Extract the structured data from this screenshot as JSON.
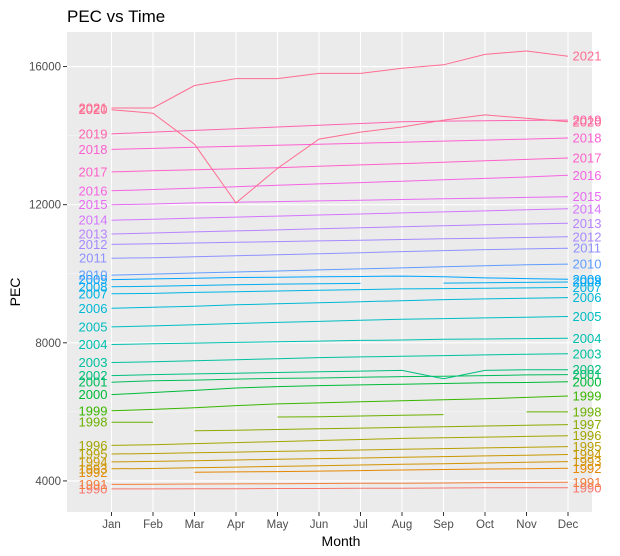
{
  "chart_data": {
    "type": "line",
    "title": "PEC vs Time",
    "xlabel": "Month",
    "ylabel": "PEC",
    "x": [
      "Jan",
      "Feb",
      "Mar",
      "Apr",
      "May",
      "Jun",
      "Jul",
      "Aug",
      "Sep",
      "Oct",
      "Nov",
      "Dec"
    ],
    "y_ticks": [
      4000,
      8000,
      12000,
      16000
    ],
    "ylim": [
      3100,
      17000
    ],
    "grid": true,
    "legend": "direct labels at both ends of each line",
    "palette": [
      "#F8766D",
      "#F17E3A",
      "#E58700",
      "#D39200",
      "#C99800",
      "#B79F00",
      "#A3A500",
      "#8BAB00",
      "#6BB100",
      "#39B600",
      "#00BA38",
      "#00BC59",
      "#00BF7D",
      "#00C19F",
      "#00C0AF",
      "#00BDC2",
      "#00B8D4",
      "#00B4E3",
      "#00ADEF",
      "#00A5FF",
      "#619CFF",
      "#8F91FF",
      "#A58AFF",
      "#B983FF",
      "#D575FE",
      "#E76BF3",
      "#F564E3",
      "#FF61C9",
      "#FD61D1",
      "#FF64B0",
      "#FF6C91",
      "#FF6C91"
    ],
    "series": [
      {
        "name": "1990",
        "values": [
          3770,
          3770,
          3775,
          3775,
          3780,
          3780,
          3785,
          3790,
          3795,
          3800,
          3800,
          3800
        ]
      },
      {
        "name": "1991",
        "values": [
          3900,
          3905,
          3910,
          3915,
          3920,
          3925,
          3930,
          3935,
          3940,
          3950,
          3955,
          3960
        ]
      },
      {
        "name": "1992",
        "values": [
          null,
          null,
          4250,
          4260,
          4270,
          4285,
          4300,
          4315,
          4330,
          4345,
          4355,
          4365
        ]
      },
      {
        "name": "1993",
        "values": [
          4350,
          4360,
          4380,
          4400,
          4420,
          4440,
          4460,
          4480,
          4500,
          4520,
          4540,
          4560
        ]
      },
      {
        "name": "1994",
        "values": [
          4550,
          4565,
          4585,
          4605,
          4625,
          4645,
          4665,
          4685,
          4705,
          4725,
          4745,
          4765
        ]
      },
      {
        "name": "1995",
        "values": [
          4780,
          4795,
          4815,
          4835,
          4855,
          4875,
          4895,
          4915,
          4935,
          4955,
          4975,
          4995
        ]
      },
      {
        "name": "1996",
        "values": [
          5030,
          5050,
          5080,
          5110,
          5140,
          5170,
          5200,
          5230,
          5250,
          5270,
          5290,
          5310
        ]
      },
      {
        "name": "1997",
        "values": [
          null,
          null,
          5450,
          5470,
          5490,
          5510,
          5530,
          5550,
          5570,
          5590,
          5610,
          5630
        ]
      },
      {
        "name": "1998",
        "values": [
          5700,
          5700,
          null,
          null,
          5850,
          5860,
          5880,
          5900,
          5920,
          null,
          6000,
          6000
        ]
      },
      {
        "name": "1999",
        "values": [
          6030,
          6070,
          6120,
          6180,
          6230,
          6260,
          6290,
          6320,
          6350,
          6380,
          6420,
          6460
        ]
      },
      {
        "name": "2000",
        "values": [
          6500,
          6560,
          6620,
          6690,
          6730,
          6760,
          6780,
          6800,
          6820,
          6840,
          6850,
          6870
        ]
      },
      {
        "name": "2001",
        "values": [
          6860,
          6900,
          6920,
          6950,
          6970,
          6980,
          7000,
          7020,
          7030,
          7050,
          7070,
          7080
        ]
      },
      {
        "name": "2002",
        "values": [
          7050,
          7080,
          7100,
          7120,
          7140,
          7160,
          7180,
          7200,
          6960,
          7200,
          7220,
          7220
        ]
      },
      {
        "name": "2003",
        "values": [
          7430,
          7450,
          7480,
          7510,
          7540,
          7570,
          7590,
          7610,
          7630,
          7650,
          7670,
          7680
        ]
      },
      {
        "name": "2004",
        "values": [
          7950,
          7970,
          7990,
          8010,
          8030,
          8050,
          8070,
          8080,
          8100,
          8110,
          8120,
          8130
        ]
      },
      {
        "name": "2005",
        "values": [
          8460,
          8490,
          8520,
          8560,
          8590,
          8620,
          8650,
          8680,
          8700,
          8720,
          8740,
          8760
        ]
      },
      {
        "name": "2006",
        "values": [
          9000,
          9030,
          9060,
          9100,
          9130,
          9160,
          9190,
          9220,
          9250,
          9270,
          9290,
          9310
        ]
      },
      {
        "name": "2007",
        "values": [
          9420,
          9430,
          9460,
          9480,
          9500,
          9520,
          9540,
          9560,
          9570,
          9580,
          9590,
          9600
        ]
      },
      {
        "name": "2008",
        "values": [
          9620,
          9640,
          9660,
          9680,
          9700,
          9710,
          9720,
          null,
          9730,
          9740,
          9750,
          9760
        ]
      },
      {
        "name": "2009",
        "values": [
          9830,
          9850,
          9870,
          9890,
          9900,
          9910,
          9920,
          9930,
          9910,
          9880,
          9860,
          9840
        ]
      },
      {
        "name": "2010",
        "values": [
          9960,
          9990,
          10020,
          10050,
          10080,
          10110,
          10140,
          10170,
          10200,
          10230,
          10260,
          10280
        ]
      },
      {
        "name": "2011",
        "values": [
          10450,
          10460,
          10490,
          10520,
          10550,
          10580,
          10610,
          10640,
          10670,
          10700,
          10720,
          10740
        ]
      },
      {
        "name": "2012",
        "values": [
          10850,
          10870,
          10890,
          10910,
          10930,
          10950,
          10970,
          10990,
          11010,
          11030,
          11050,
          11070
        ]
      },
      {
        "name": "2013",
        "values": [
          11150,
          11180,
          11210,
          11240,
          11270,
          11300,
          11330,
          11360,
          11390,
          11420,
          11440,
          11460
        ]
      },
      {
        "name": "2014",
        "values": [
          11550,
          11580,
          11610,
          11640,
          11670,
          11700,
          11730,
          11760,
          11790,
          11820,
          11850,
          11880
        ]
      },
      {
        "name": "2015",
        "values": [
          12000,
          12020,
          12050,
          12070,
          12090,
          12110,
          12130,
          12150,
          12170,
          12190,
          12210,
          12230
        ]
      },
      {
        "name": "2016",
        "values": [
          12400,
          12440,
          12480,
          12520,
          12560,
          12600,
          12640,
          12680,
          12720,
          12760,
          12800,
          12850
        ]
      },
      {
        "name": "2017",
        "values": [
          12950,
          12980,
          13010,
          13040,
          13070,
          13110,
          13150,
          13190,
          13230,
          13270,
          13310,
          13350
        ]
      },
      {
        "name": "2018",
        "values": [
          13600,
          13630,
          13660,
          13690,
          13720,
          13750,
          13780,
          13810,
          13840,
          13870,
          13900,
          13930
        ]
      },
      {
        "name": "2019",
        "values": [
          14050,
          14100,
          14150,
          14200,
          14250,
          14300,
          14350,
          14400,
          14420,
          14430,
          14440,
          14450
        ]
      },
      {
        "name": "2020",
        "values": [
          14750,
          14650,
          13750,
          12050,
          13050,
          13900,
          14100,
          14250,
          14450,
          14600,
          14500,
          14400
        ]
      },
      {
        "name": "2021",
        "values": [
          14800,
          14800,
          15450,
          15650,
          15650,
          15800,
          15800,
          15950,
          16050,
          16350,
          16450,
          16300
        ]
      }
    ],
    "left_labels": [
      "1990",
      "1991",
      "1992",
      "1993",
      "1994",
      "1995",
      "1996",
      "1998",
      "1999",
      "2000",
      "2001",
      "2002",
      "2003",
      "2004",
      "2005",
      "2006",
      "2007",
      "2008",
      "2009",
      "2010",
      "2011",
      "2012",
      "2013",
      "2014",
      "2015",
      "2016",
      "2017",
      "2018",
      "2019",
      "2020",
      "2021"
    ],
    "right_labels": [
      "1990",
      "1991",
      "1992",
      "1993",
      "1994",
      "1995",
      "1996",
      "1997",
      "1998",
      "1999",
      "2000",
      "2001",
      "2002",
      "2003",
      "2004",
      "2005",
      "2006",
      "2007",
      "2008",
      "2009",
      "2010",
      "2011",
      "2012",
      "2013",
      "2014",
      "2015",
      "2016",
      "2017",
      "2018",
      "2019",
      "2020",
      "2021"
    ]
  }
}
